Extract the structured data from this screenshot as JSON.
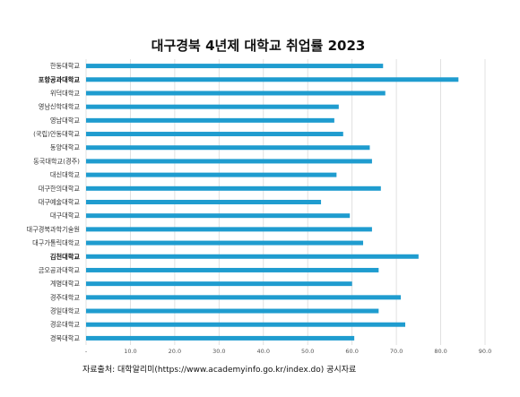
{
  "chart_data": {
    "type": "bar",
    "orientation": "horizontal",
    "title": "대구경북 4년제 대학교 취업률 2023",
    "categories": [
      "한동대학교",
      "포항공과대학교",
      "위덕대학교",
      "영남신학대학교",
      "영남대학교",
      "(국립)안동대학교",
      "동양대학교",
      "동국대학교(경주)",
      "대신대학교",
      "대구한의대학교",
      "대구예술대학교",
      "대구대학교",
      "대구경북과학기술원",
      "대구가톨릭대학교",
      "김천대학교",
      "금오공과대학교",
      "계명대학교",
      "경주대학교",
      "경일대학교",
      "경운대학교",
      "경북대학교"
    ],
    "bold_categories": [
      "포항공과대학교",
      "김천대학교"
    ],
    "values": [
      67.0,
      84.0,
      67.5,
      57.0,
      56.0,
      58.0,
      64.0,
      64.5,
      56.5,
      66.5,
      53.0,
      59.5,
      64.5,
      62.5,
      75.0,
      66.0,
      60.0,
      71.0,
      66.0,
      72.0,
      60.5
    ],
    "xlim": [
      0,
      90
    ],
    "x_ticks": [
      "-",
      "10.0",
      "20.0",
      "30.0",
      "40.0",
      "50.0",
      "60.0",
      "70.0",
      "80.0",
      "90.0"
    ],
    "grid": true,
    "bar_color": "#1f9ccf"
  },
  "source": "자료출처:  대학알리미(https://www.academyinfo.go.kr/index.do) 공시자료"
}
